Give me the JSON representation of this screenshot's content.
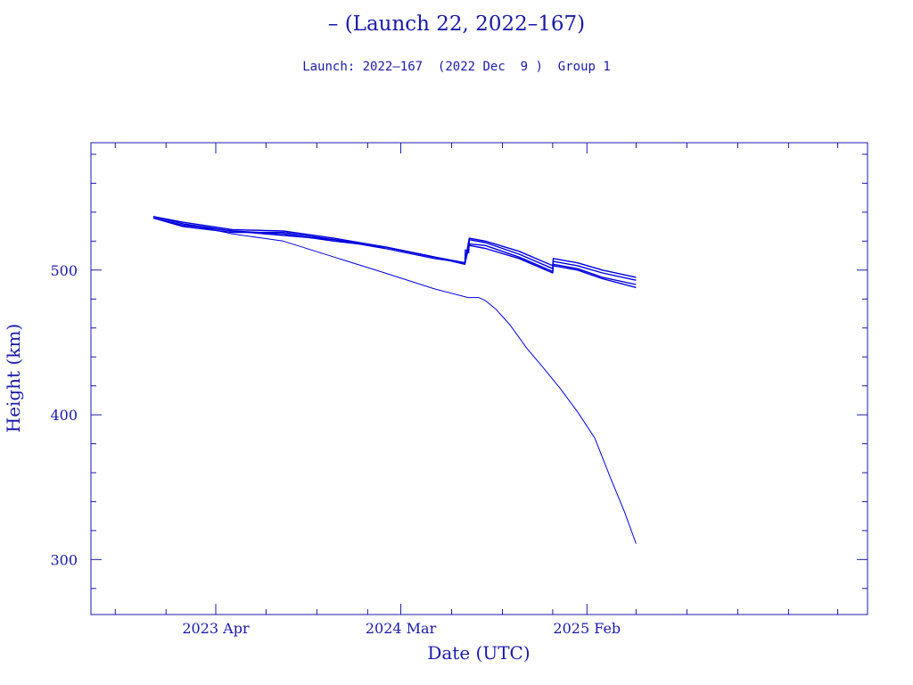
{
  "header": {
    "title": "– (Launch 22, 2022–167)",
    "subtitle": "Launch: 2022–167  (2022 Dec  9 )  Group 1"
  },
  "colors": {
    "axis": "#1a1aa8",
    "series": "#0000dd"
  },
  "chart_data": {
    "type": "line",
    "title": "– (Launch 22, 2022–167)",
    "subtitle": "Launch: 2022–167  (2022 Dec  9 )  Group 1",
    "xlabel": "Date (UTC)",
    "ylabel": "Height (km)",
    "xlim": [
      "2022-08-18",
      "2026-06-24"
    ],
    "ylim": [
      262,
      588
    ],
    "x_ticks": [
      {
        "date": "2023-04-01",
        "label": "2023 Apr"
      },
      {
        "date": "2024-03-01",
        "label": "2024 Mar"
      },
      {
        "date": "2025-02-01",
        "label": "2025 Feb"
      }
    ],
    "y_ticks": [
      300,
      400,
      500
    ],
    "grid": false,
    "series": [
      {
        "x": [
          "2022-12-09",
          "2023-02-01",
          "2023-05-01",
          "2023-08-01",
          "2023-11-01",
          "2024-02-01",
          "2024-05-01",
          "2024-07-01",
          "2024-07-20",
          "2024-08-01",
          "2024-08-20",
          "2024-09-15",
          "2024-10-15",
          "2024-11-15",
          "2024-12-15",
          "2025-01-15",
          "2025-02-15",
          "2025-03-15",
          "2025-04-10",
          "2025-05-01"
        ],
        "y": [
          537,
          532,
          525,
          520,
          509,
          498,
          487,
          481,
          481,
          479,
          473,
          462,
          446,
          432,
          418,
          402,
          384,
          357,
          333,
          311
        ]
      },
      {
        "x": [
          "2022-12-09",
          "2023-02-01",
          "2023-05-01",
          "2023-08-01",
          "2023-11-01",
          "2024-02-01",
          "2024-05-01",
          "2024-06-25",
          "2024-06-26",
          "2024-07-02",
          "2024-07-03",
          "2024-08-01",
          "2024-10-01",
          "2024-12-01",
          "2024-12-02",
          "2025-01-15",
          "2025-03-01",
          "2025-05-01"
        ],
        "y": [
          537,
          532,
          527,
          525,
          520,
          516,
          509,
          505,
          514,
          512,
          521,
          519,
          511,
          501,
          506,
          503,
          498,
          493
        ]
      },
      {
        "x": [
          "2022-12-09",
          "2023-02-01",
          "2023-05-01",
          "2023-08-01",
          "2023-11-01",
          "2024-02-01",
          "2024-05-01",
          "2024-06-25",
          "2024-07-03",
          "2024-08-01",
          "2024-10-01",
          "2024-12-01",
          "2024-12-02",
          "2025-01-15",
          "2025-03-01",
          "2025-05-01"
        ],
        "y": [
          536,
          530,
          526,
          526,
          521,
          516,
          509,
          504,
          518,
          517,
          509,
          499,
          504,
          501,
          495,
          490
        ]
      },
      {
        "x": [
          "2022-12-09",
          "2023-02-01",
          "2023-05-01",
          "2023-08-01",
          "2023-11-01",
          "2024-02-01",
          "2024-05-01",
          "2024-06-25",
          "2024-07-03",
          "2024-08-01",
          "2024-10-01",
          "2024-12-01",
          "2024-12-02",
          "2025-01-15",
          "2025-03-01",
          "2025-05-01"
        ],
        "y": [
          537,
          533,
          528,
          527,
          522,
          516,
          509,
          505,
          522,
          520,
          513,
          503,
          508,
          505,
          500,
          495
        ]
      },
      {
        "x": [
          "2022-12-09",
          "2023-02-01",
          "2023-05-01",
          "2023-08-01",
          "2023-11-01",
          "2024-02-01",
          "2024-05-01",
          "2024-06-25",
          "2024-07-03",
          "2024-08-01",
          "2024-10-01",
          "2024-12-01",
          "2024-12-02",
          "2025-01-15",
          "2025-03-01",
          "2025-05-01"
        ],
        "y": [
          536,
          531,
          527,
          524,
          521,
          515,
          508,
          505,
          517,
          515,
          508,
          498,
          503,
          500,
          494,
          488
        ]
      }
    ]
  }
}
